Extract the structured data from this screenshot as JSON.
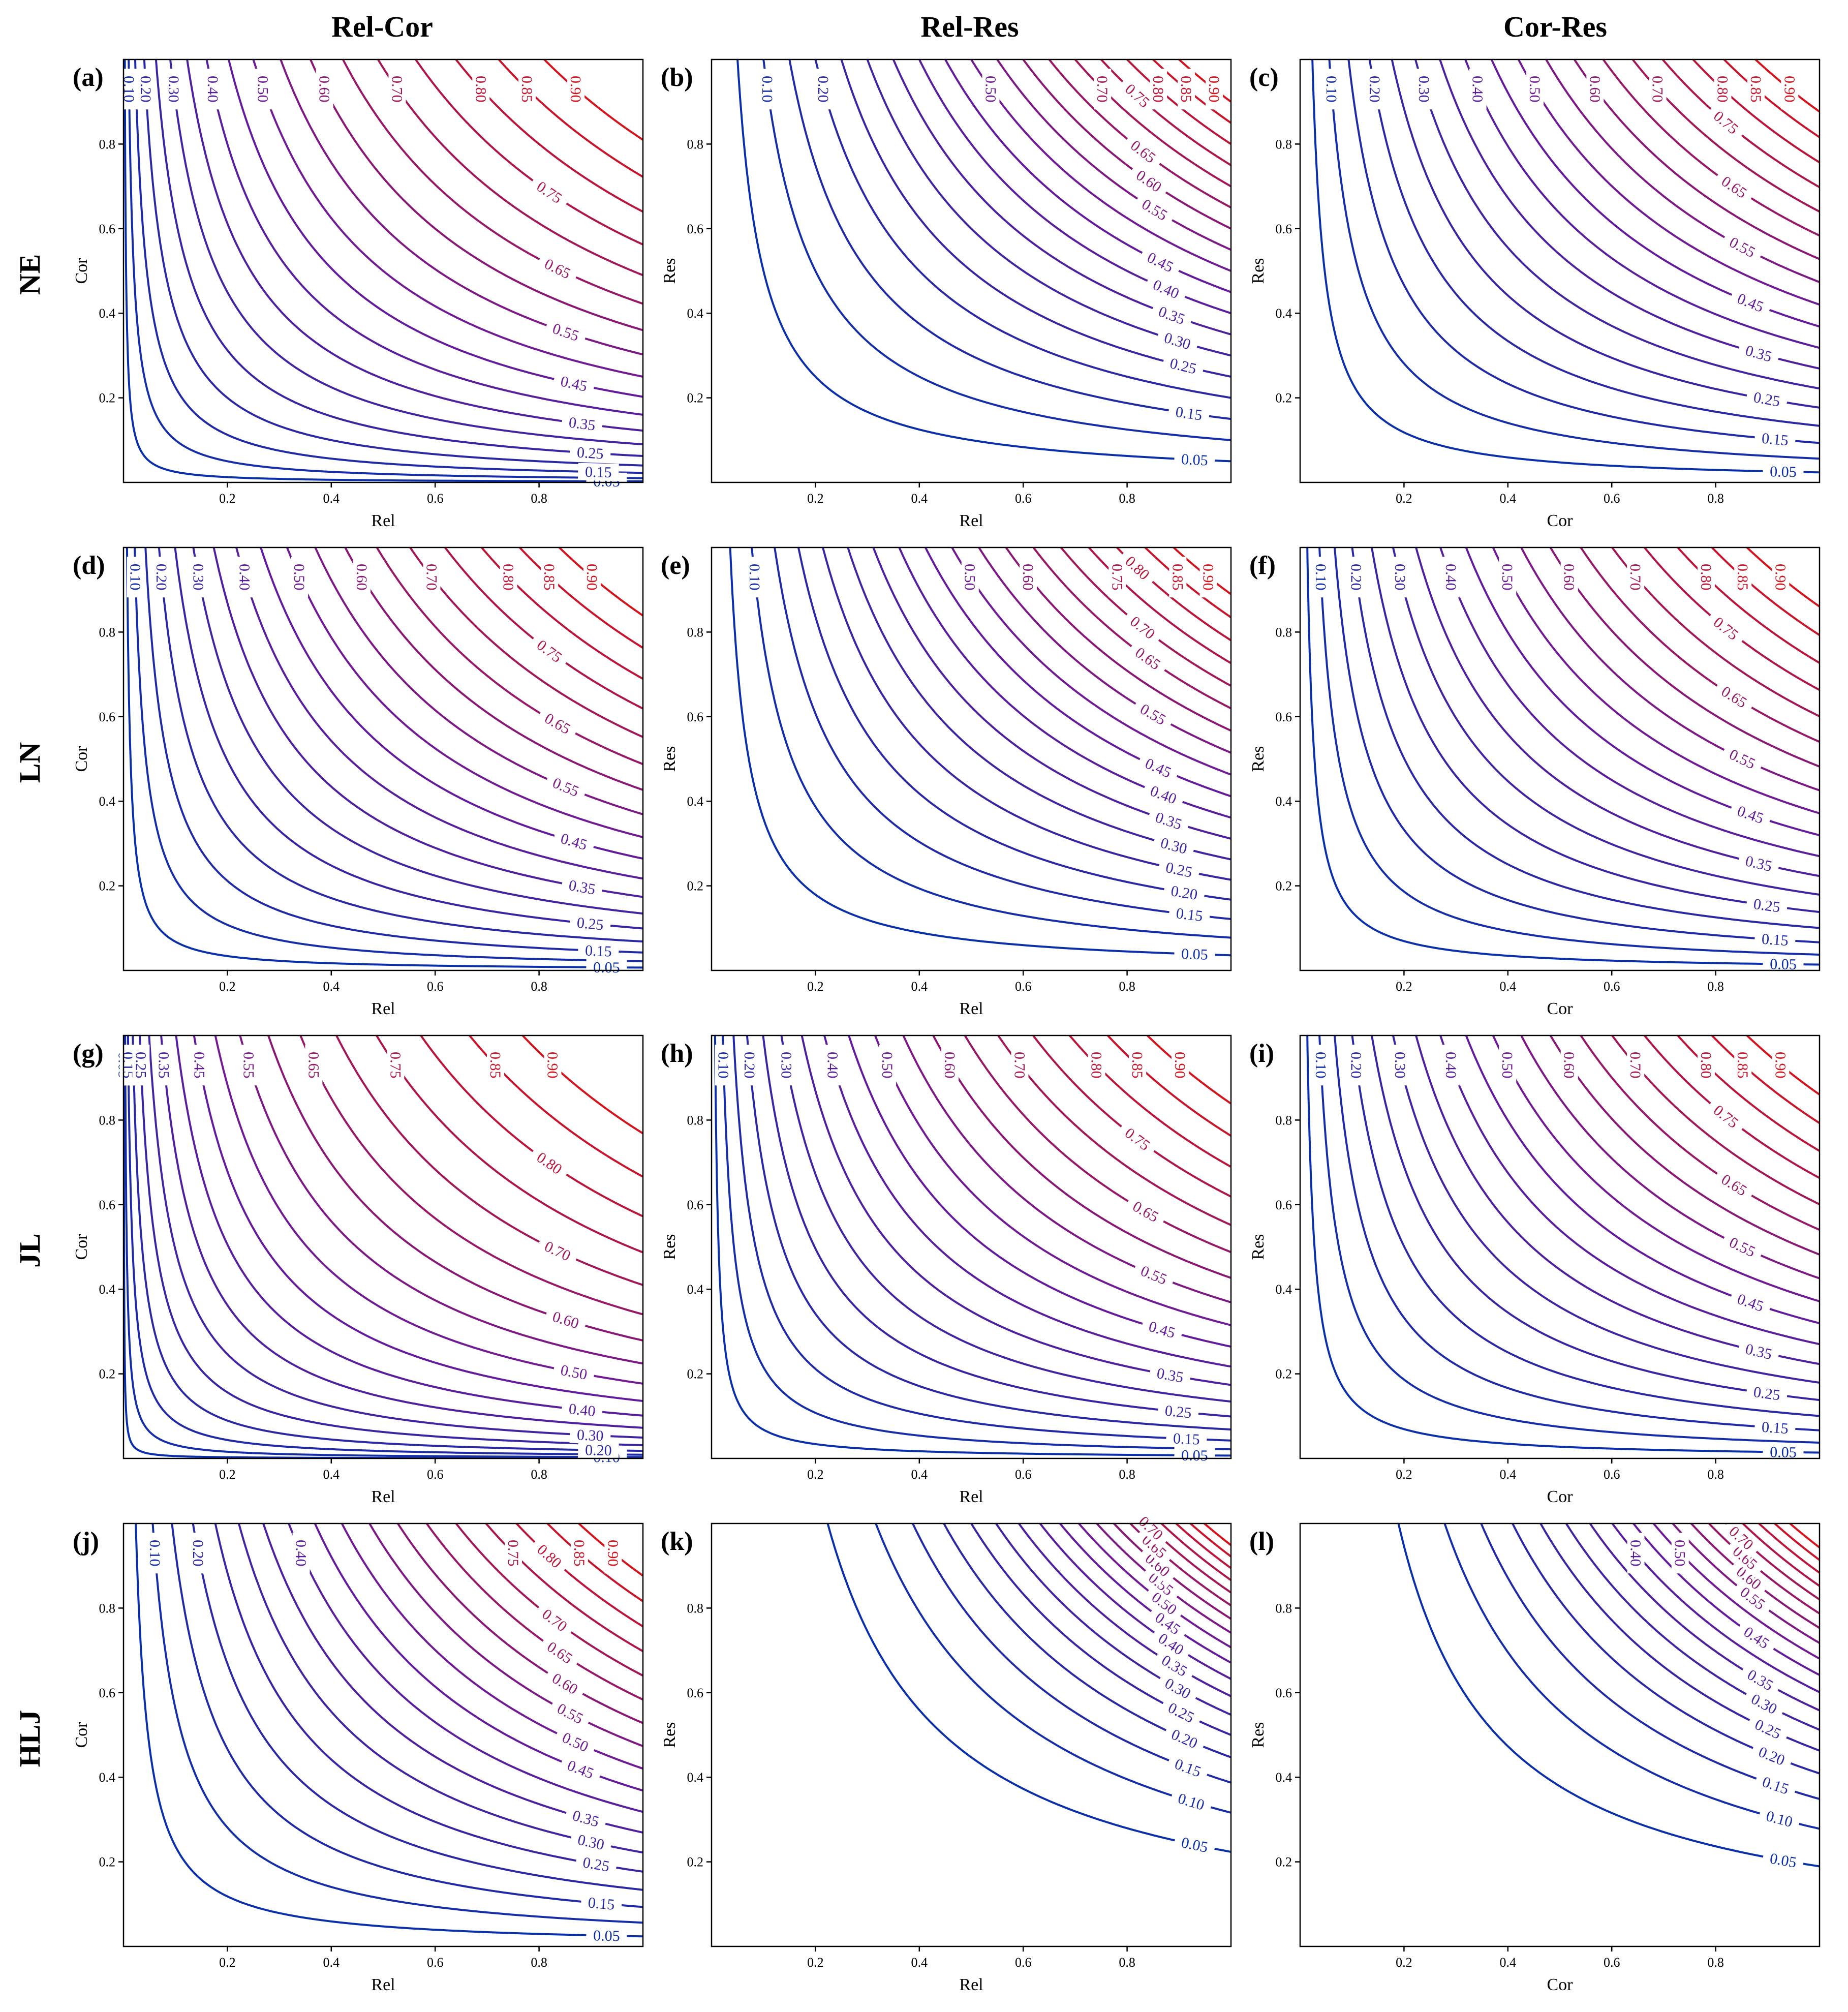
{
  "col_titles": [
    "Rel-Cor",
    "Rel-Res",
    "Cor-Res"
  ],
  "row_labels": [
    "NE",
    "LN",
    "JL",
    "HLJ"
  ],
  "colors": {
    "low": "#0a2fa8",
    "mid": "#6a1a9a",
    "high": "#d4141c"
  },
  "chart_data": [
    {
      "panel": "(a)",
      "type": "contour",
      "xlabel": "Rel",
      "ylabel": "Cor",
      "xlim": [
        0,
        1
      ],
      "ylim": [
        0,
        1
      ],
      "xticks": [
        "0.2",
        "0.4",
        "0.6",
        "0.8"
      ],
      "yticks": [
        "0.2",
        "0.4",
        "0.6",
        "0.8"
      ],
      "alpha": 0.5,
      "beta": 0.5,
      "levels": [
        0.05,
        0.1,
        0.15,
        0.2,
        0.25,
        0.3,
        0.35,
        0.4,
        0.45,
        0.5,
        0.55,
        0.6,
        0.65,
        0.7,
        0.75,
        0.8,
        0.85,
        0.9
      ],
      "vertical_labels": [
        0.1,
        0.2,
        0.3,
        0.4,
        0.5,
        0.6,
        0.7,
        0.8,
        0.85,
        0.9
      ],
      "horizontal_labels": [
        0.05,
        0.15,
        0.25,
        0.35,
        0.45,
        0.55,
        0.65,
        0.75
      ]
    },
    {
      "panel": "(b)",
      "type": "contour",
      "xlabel": "Rel",
      "ylabel": "Res",
      "xlim": [
        0,
        1
      ],
      "ylim": [
        0,
        1
      ],
      "xticks": [
        "0.2",
        "0.4",
        "0.6",
        "0.8"
      ],
      "yticks": [
        "0.2",
        "0.4",
        "0.6",
        "0.8"
      ],
      "alpha": 1.0,
      "beta": 1.0,
      "levels": [
        0.05,
        0.1,
        0.15,
        0.2,
        0.25,
        0.3,
        0.35,
        0.4,
        0.45,
        0.5,
        0.55,
        0.6,
        0.65,
        0.7,
        0.75,
        0.8,
        0.85,
        0.9
      ],
      "vertical_labels": [
        0.1,
        0.2,
        0.5,
        0.7,
        0.8,
        0.85,
        0.9
      ],
      "horizontal_labels": [
        0.05,
        0.15,
        0.25,
        0.3,
        0.35,
        0.4,
        0.45,
        0.55,
        0.6,
        0.65,
        0.75
      ]
    },
    {
      "panel": "(c)",
      "type": "contour",
      "xlabel": "Cor",
      "ylabel": "Res",
      "xlim": [
        0,
        1
      ],
      "ylim": [
        0,
        1
      ],
      "xticks": [
        "0.2",
        "0.4",
        "0.6",
        "0.8"
      ],
      "yticks": [
        "0.2",
        "0.4",
        "0.6",
        "0.8"
      ],
      "alpha": 0.8,
      "beta": 0.8,
      "levels": [
        0.05,
        0.1,
        0.15,
        0.2,
        0.25,
        0.3,
        0.35,
        0.4,
        0.45,
        0.5,
        0.55,
        0.6,
        0.65,
        0.7,
        0.75,
        0.8,
        0.85,
        0.9
      ],
      "vertical_labels": [
        0.1,
        0.2,
        0.3,
        0.4,
        0.5,
        0.6,
        0.7,
        0.8,
        0.85,
        0.9
      ],
      "horizontal_labels": [
        0.05,
        0.15,
        0.25,
        0.35,
        0.45,
        0.55,
        0.65,
        0.75
      ]
    },
    {
      "panel": "(d)",
      "type": "contour",
      "xlabel": "Rel",
      "ylabel": "Cor",
      "xlim": [
        0,
        1
      ],
      "ylim": [
        0,
        1
      ],
      "xticks": [
        "0.2",
        "0.4",
        "0.6",
        "0.8"
      ],
      "yticks": [
        "0.2",
        "0.4",
        "0.6",
        "0.8"
      ],
      "alpha": 0.6,
      "beta": 0.6,
      "levels": [
        0.05,
        0.1,
        0.15,
        0.2,
        0.25,
        0.3,
        0.35,
        0.4,
        0.45,
        0.5,
        0.55,
        0.6,
        0.65,
        0.7,
        0.75,
        0.8,
        0.85,
        0.9
      ],
      "vertical_labels": [
        0.1,
        0.2,
        0.3,
        0.4,
        0.5,
        0.6,
        0.7,
        0.8,
        0.85,
        0.9
      ],
      "horizontal_labels": [
        0.05,
        0.15,
        0.25,
        0.35,
        0.45,
        0.55,
        0.65,
        0.75
      ]
    },
    {
      "panel": "(e)",
      "type": "contour",
      "xlabel": "Rel",
      "ylabel": "Res",
      "xlim": [
        0,
        1
      ],
      "ylim": [
        0,
        1
      ],
      "xticks": [
        "0.2",
        "0.4",
        "0.6",
        "0.8"
      ],
      "yticks": [
        "0.2",
        "0.4",
        "0.6",
        "0.8"
      ],
      "alpha": 0.9,
      "beta": 0.9,
      "levels": [
        0.05,
        0.1,
        0.15,
        0.2,
        0.25,
        0.3,
        0.35,
        0.4,
        0.45,
        0.5,
        0.55,
        0.6,
        0.65,
        0.7,
        0.75,
        0.8,
        0.85,
        0.9
      ],
      "vertical_labels": [
        0.1,
        0.5,
        0.6,
        0.75,
        0.85,
        0.9
      ],
      "horizontal_labels": [
        0.05,
        0.15,
        0.2,
        0.25,
        0.3,
        0.35,
        0.4,
        0.45,
        0.55,
        0.65,
        0.7,
        0.8
      ]
    },
    {
      "panel": "(f)",
      "type": "contour",
      "xlabel": "Cor",
      "ylabel": "Res",
      "xlim": [
        0,
        1
      ],
      "ylim": [
        0,
        1
      ],
      "xticks": [
        "0.2",
        "0.4",
        "0.6",
        "0.8"
      ],
      "yticks": [
        "0.2",
        "0.4",
        "0.6",
        "0.8"
      ],
      "alpha": 0.7,
      "beta": 0.7,
      "levels": [
        0.05,
        0.1,
        0.15,
        0.2,
        0.25,
        0.3,
        0.35,
        0.4,
        0.45,
        0.5,
        0.55,
        0.6,
        0.65,
        0.7,
        0.75,
        0.8,
        0.85,
        0.9
      ],
      "vertical_labels": [
        0.1,
        0.2,
        0.3,
        0.4,
        0.5,
        0.6,
        0.7,
        0.8,
        0.85,
        0.9
      ],
      "horizontal_labels": [
        0.05,
        0.15,
        0.25,
        0.35,
        0.45,
        0.55,
        0.65,
        0.75
      ]
    },
    {
      "panel": "(g)",
      "type": "contour",
      "xlabel": "Rel",
      "ylabel": "Cor",
      "xlim": [
        0,
        1
      ],
      "ylim": [
        0,
        1
      ],
      "xticks": [
        "0.2",
        "0.4",
        "0.6",
        "0.8"
      ],
      "yticks": [
        "0.2",
        "0.4",
        "0.6",
        "0.8"
      ],
      "alpha": 0.4,
      "beta": 0.4,
      "levels": [
        0.05,
        0.1,
        0.15,
        0.2,
        0.25,
        0.3,
        0.35,
        0.4,
        0.45,
        0.5,
        0.55,
        0.6,
        0.65,
        0.7,
        0.75,
        0.8,
        0.85,
        0.9
      ],
      "vertical_labels": [
        0.05,
        0.15,
        0.25,
        0.35,
        0.45,
        0.55,
        0.65,
        0.75,
        0.85,
        0.9
      ],
      "horizontal_labels": [
        0.1,
        0.2,
        0.3,
        0.4,
        0.5,
        0.6,
        0.7,
        0.8
      ]
    },
    {
      "panel": "(h)",
      "type": "contour",
      "xlabel": "Rel",
      "ylabel": "Res",
      "xlim": [
        0,
        1
      ],
      "ylim": [
        0,
        1
      ],
      "xticks": [
        "0.2",
        "0.4",
        "0.6",
        "0.8"
      ],
      "yticks": [
        "0.2",
        "0.4",
        "0.6",
        "0.8"
      ],
      "alpha": 0.6,
      "beta": 0.6,
      "levels": [
        0.05,
        0.1,
        0.15,
        0.2,
        0.25,
        0.3,
        0.35,
        0.4,
        0.45,
        0.5,
        0.55,
        0.6,
        0.65,
        0.7,
        0.75,
        0.8,
        0.85,
        0.9
      ],
      "vertical_labels": [
        0.1,
        0.2,
        0.3,
        0.4,
        0.5,
        0.6,
        0.7,
        0.8,
        0.85,
        0.9
      ],
      "horizontal_labels": [
        0.05,
        0.15,
        0.25,
        0.35,
        0.45,
        0.55,
        0.65,
        0.75
      ]
    },
    {
      "panel": "(i)",
      "type": "contour",
      "xlabel": "Cor",
      "ylabel": "Res",
      "xlim": [
        0,
        1
      ],
      "ylim": [
        0,
        1
      ],
      "xticks": [
        "0.2",
        "0.4",
        "0.6",
        "0.8"
      ],
      "yticks": [
        "0.2",
        "0.4",
        "0.6",
        "0.8"
      ],
      "alpha": 0.7,
      "beta": 0.7,
      "levels": [
        0.05,
        0.1,
        0.15,
        0.2,
        0.25,
        0.3,
        0.35,
        0.4,
        0.45,
        0.5,
        0.55,
        0.6,
        0.65,
        0.7,
        0.75,
        0.8,
        0.85,
        0.9
      ],
      "vertical_labels": [
        0.1,
        0.2,
        0.3,
        0.4,
        0.5,
        0.6,
        0.7,
        0.8,
        0.85,
        0.9
      ],
      "horizontal_labels": [
        0.05,
        0.15,
        0.25,
        0.35,
        0.45,
        0.55,
        0.65,
        0.75
      ]
    },
    {
      "panel": "(j)",
      "type": "contour",
      "xlabel": "Rel",
      "ylabel": "Cor",
      "xlim": [
        0,
        1
      ],
      "ylim": [
        0,
        1
      ],
      "xticks": [
        "0.2",
        "0.4",
        "0.6",
        "0.8"
      ],
      "yticks": [
        "0.2",
        "0.4",
        "0.6",
        "0.8"
      ],
      "alpha": 0.8,
      "beta": 0.8,
      "levels": [
        0.05,
        0.1,
        0.15,
        0.2,
        0.25,
        0.3,
        0.35,
        0.4,
        0.45,
        0.5,
        0.55,
        0.6,
        0.65,
        0.7,
        0.75,
        0.8,
        0.85,
        0.9
      ],
      "vertical_labels": [
        0.1,
        0.2,
        0.4,
        0.75,
        0.85,
        0.9
      ],
      "horizontal_labels": [
        0.05,
        0.15,
        0.25,
        0.3,
        0.35,
        0.45,
        0.5,
        0.55,
        0.6,
        0.65,
        0.7,
        0.8
      ]
    },
    {
      "panel": "(k)",
      "type": "contour",
      "xlabel": "Rel",
      "ylabel": "Res",
      "xlim": [
        0,
        1
      ],
      "ylim": [
        0,
        1
      ],
      "xticks": [
        "0.2",
        "0.4",
        "0.6",
        "0.8"
      ],
      "yticks": [
        "0.2",
        "0.4",
        "0.6",
        "0.8"
      ],
      "alpha": 2.0,
      "beta": 2.0,
      "levels": [
        0.05,
        0.1,
        0.15,
        0.2,
        0.25,
        0.3,
        0.35,
        0.4,
        0.45,
        0.5,
        0.55,
        0.6,
        0.65,
        0.7,
        0.75,
        0.8,
        0.85,
        0.9
      ],
      "vertical_labels": [],
      "horizontal_labels": [
        0.05,
        0.1,
        0.15,
        0.2,
        0.25,
        0.3,
        0.35,
        0.4,
        0.45,
        0.5,
        0.55,
        0.6,
        0.65,
        0.7,
        0.75,
        0.8,
        0.85,
        0.9
      ]
    },
    {
      "panel": "(l)",
      "type": "contour",
      "xlabel": "Cor",
      "ylabel": "Res",
      "xlim": [
        0,
        1
      ],
      "ylim": [
        0,
        1
      ],
      "xticks": [
        "0.2",
        "0.4",
        "0.6",
        "0.8"
      ],
      "yticks": [
        "0.2",
        "0.4",
        "0.6",
        "0.8"
      ],
      "alpha": 1.8,
      "beta": 1.8,
      "levels": [
        0.05,
        0.1,
        0.15,
        0.2,
        0.25,
        0.3,
        0.35,
        0.4,
        0.45,
        0.5,
        0.55,
        0.6,
        0.65,
        0.7,
        0.75,
        0.8,
        0.85,
        0.9
      ],
      "vertical_labels": [
        0.4,
        0.5
      ],
      "horizontal_labels": [
        0.05,
        0.1,
        0.15,
        0.2,
        0.25,
        0.3,
        0.35,
        0.45,
        0.55,
        0.6,
        0.65,
        0.7,
        0.75,
        0.8,
        0.85,
        0.9
      ]
    }
  ]
}
